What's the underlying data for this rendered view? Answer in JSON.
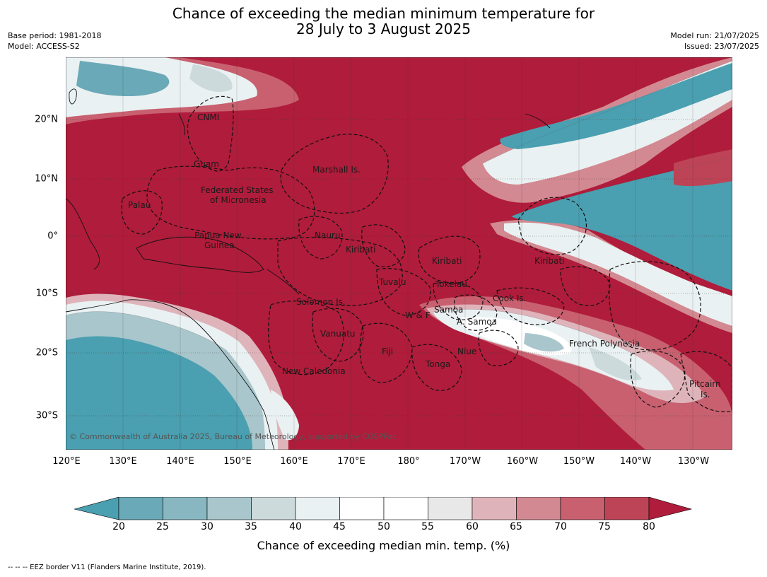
{
  "title": {
    "line1": "Chance of exceeding the median minimum temperature for",
    "line2": "28 July to 3 August 2025"
  },
  "meta_left": {
    "base_period": "Base period: 1981-2018",
    "model": "Model: ACCESS-S2"
  },
  "meta_right": {
    "model_run": "Model run: 21/07/2025",
    "issued": "Issued: 23/07/2025"
  },
  "map": {
    "lon_ticks": [
      "120°E",
      "130°E",
      "140°E",
      "150°E",
      "160°E",
      "170°E",
      "180°",
      "170°W",
      "160°W",
      "150°W",
      "140°W",
      "130°W"
    ],
    "lat_ticks": [
      "20°N",
      "10°N",
      "0°",
      "10°S",
      "20°S",
      "30°S"
    ],
    "labels": {
      "cnmi": "CNMI",
      "guam": "Guam",
      "marshall": "Marshall Is.",
      "fsm1": "Federated States",
      "fsm2": "of Micronesia",
      "palau": "Palau",
      "png1": "Papua New",
      "png2": "Guinea",
      "nauru": "Nauru",
      "kiribati_w": "Kiribati",
      "kiribati_c": "Kiribati",
      "kiribati_e": "Kiribati",
      "tuvalu": "Tuvalu",
      "tokelau": "Tokelau",
      "solomon": "Solomon Is.",
      "wf": "W & F",
      "samoa": "Samoa",
      "asamoa": "A. Samoa",
      "cook": "Cook Is.",
      "vanuatu": "Vanuatu",
      "fiji": "Fiji",
      "niue": "Niue",
      "tonga": "Tonga",
      "french_polynesia": "French Polynesia",
      "new_caledonia": "New Caledonia",
      "pitcairn1": "Pitcairn",
      "pitcairn2": "Is."
    },
    "copyright": "© Commonwealth of Australia 2025, Bureau of Meteorology, supported by COSPPac"
  },
  "colorbar": {
    "ticks": [
      "20",
      "25",
      "30",
      "35",
      "40",
      "45",
      "50",
      "55",
      "60",
      "65",
      "70",
      "75",
      "80"
    ],
    "colors": [
      "#4a9fb0",
      "#6aa9b7",
      "#88b7c1",
      "#a8c6cc",
      "#cddadc",
      "#eaf1f2",
      "#ffffff",
      "#ffffff",
      "#e8e8e8",
      "#deb4ba",
      "#d38991",
      "#c86070",
      "#bd4456",
      "#b01c3b"
    ],
    "label": "Chance of exceeding median min. temp. (%)"
  },
  "footnote": "-- -- -- EEZ border V11 (Flanders Marine Institute, 2019)."
}
